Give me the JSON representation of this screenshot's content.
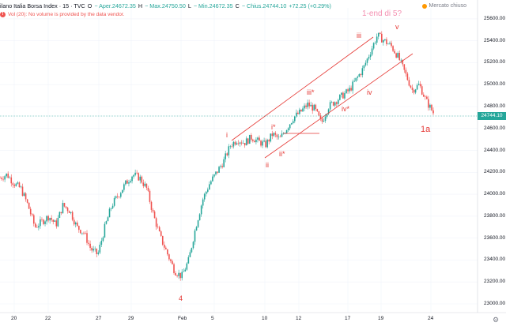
{
  "header": {
    "title": "ilano Italia Borsa Index · 15 · TVC",
    "open_label": "O",
    "open": "− Aper.24672.35",
    "high_label": "H",
    "high": "− Max.24750.50",
    "low_label": "L",
    "low": "− Min.24672.35",
    "close_label": "C",
    "close": "− Chius.24744.10",
    "change": "+72.25 (+0.29%)"
  },
  "volume_notice": "Vol (20): No volume is provided by the data vendor.",
  "market_status": "Mercato chiuso",
  "last_price": "24744.10",
  "y_ticks": [
    "25600.00",
    "25400.00",
    "25200.00",
    "25000.00",
    "24800.00",
    "24600.00",
    "24400.00",
    "24200.00",
    "24000.00",
    "23800.00",
    "23600.00",
    "23400.00",
    "23200.00",
    "23000.00"
  ],
  "x_ticks": [
    "20",
    "22",
    "27",
    "29",
    "Feb",
    "5",
    "10",
    "12",
    "17",
    "19",
    "24"
  ],
  "annotations": {
    "wave_4": "4",
    "wave_i": "i",
    "wave_ii": "ii",
    "wave_iii": "iii",
    "wave_iv": "iv",
    "wave_v": "v",
    "sub_i": "i*",
    "sub_ii": "ii*",
    "sub_iii": "iii*",
    "sub_iv": "iv*",
    "wave_1a": "1a",
    "note": "1-end di 5?"
  },
  "colors": {
    "up": "#26a69a",
    "down": "#ef5350",
    "annotation": "#e53935",
    "note": "#f48fb1"
  },
  "chart_data": {
    "type": "candlestick",
    "ylim": [
      23000,
      25700
    ],
    "x_ticks": [
      "20",
      "22",
      "27",
      "29",
      "Feb",
      "5",
      "10",
      "12",
      "17",
      "19",
      "24"
    ],
    "last_price": 24744.1,
    "price_path": [
      24150,
      24180,
      24100,
      24050,
      23900,
      23700,
      23750,
      23800,
      23720,
      23900,
      23850,
      23700,
      23650,
      23500,
      23450,
      23700,
      23900,
      24000,
      24100,
      24180,
      24150,
      24050,
      23800,
      23600,
      23450,
      23300,
      23250,
      23400,
      23700,
      23950,
      24100,
      24200,
      24300,
      24450,
      24500,
      24470,
      24520,
      24480,
      24450,
      24550,
      24500,
      24600,
      24700,
      24750,
      24820,
      24780,
      24650,
      24800,
      24850,
      24900,
      24950,
      25050,
      25150,
      25300,
      25450,
      25400,
      25350,
      25250,
      25100,
      24950,
      25000,
      24850,
      24744
    ]
  }
}
